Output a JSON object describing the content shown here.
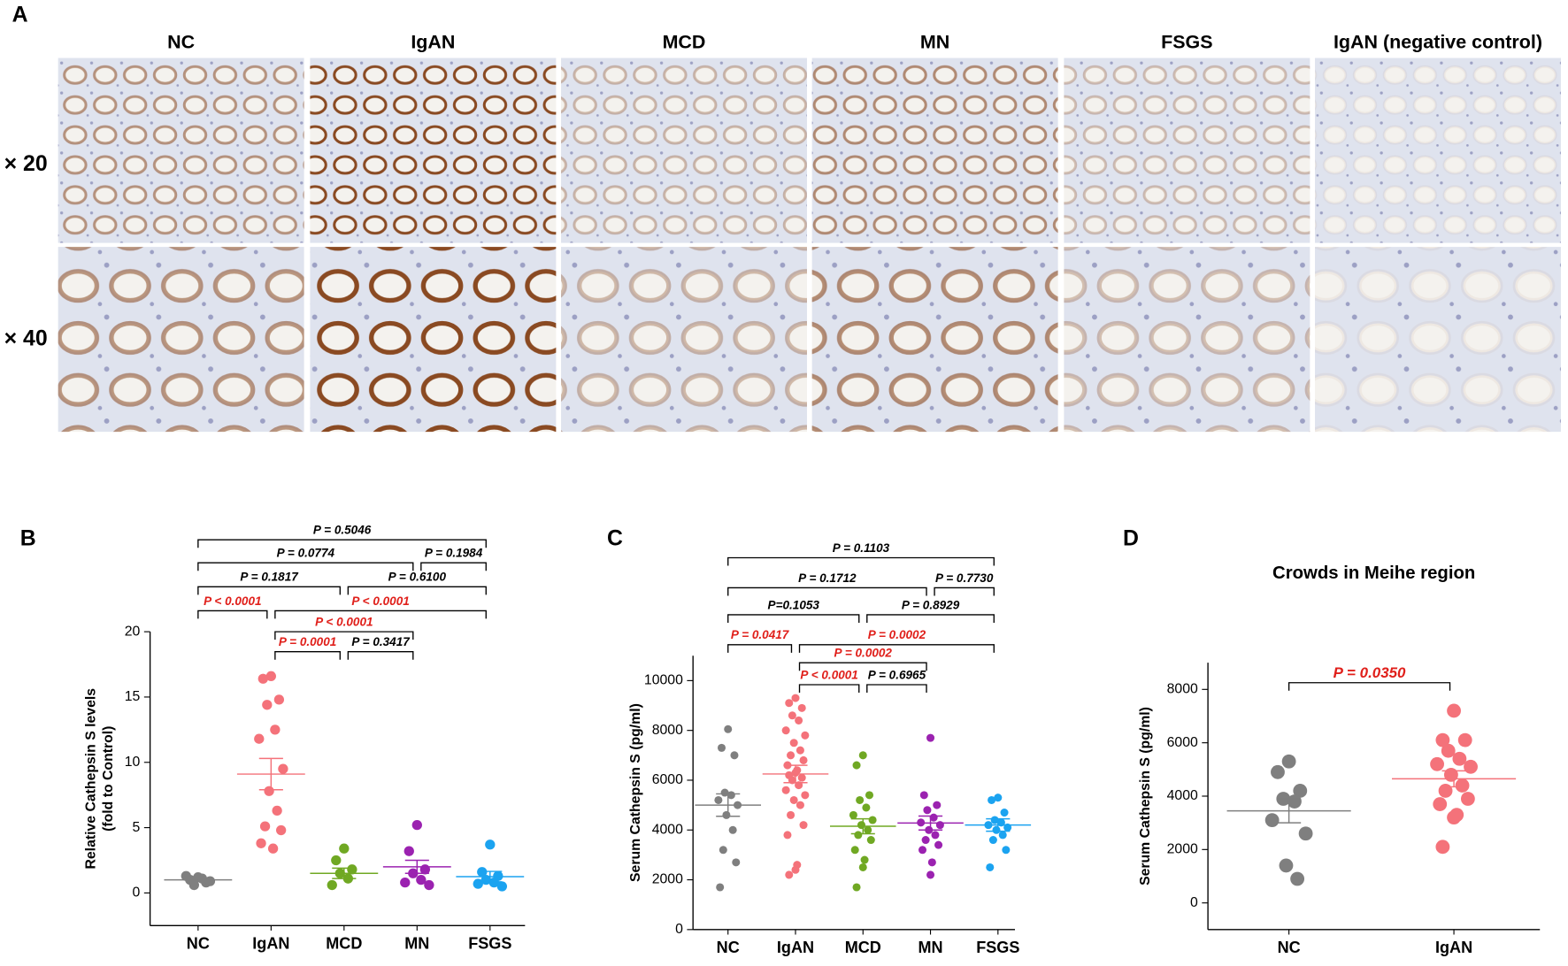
{
  "panel_a": {
    "label": "A",
    "columns": [
      "NC",
      "IgAN",
      "MCD",
      "MN",
      "FSGS",
      "IgAN (negative control)"
    ],
    "rows": [
      "× 20",
      "× 40"
    ]
  },
  "chart_data": [
    {
      "type": "dotplot",
      "panel": "B",
      "ylabel": [
        "Relative Cathepsin S levels",
        "(fold to Control)"
      ],
      "categories": [
        "NC",
        "IgAN",
        "MCD",
        "MN",
        "FSGS"
      ],
      "colors": [
        "#7f7f7f",
        "#f4727a",
        "#70a823",
        "#9b22b0",
        "#1ba3f0"
      ],
      "points": [
        [
          1.2,
          1.0,
          0.8,
          0.6,
          1.1,
          1.3,
          0.9
        ],
        [
          16.6,
          16.4,
          14.8,
          14.4,
          12.5,
          11.8,
          9.5,
          7.8,
          6.3,
          5.1,
          4.8,
          3.8,
          3.4
        ],
        [
          3.4,
          2.5,
          1.8,
          1.5,
          1.1,
          0.6
        ],
        [
          5.2,
          3.2,
          1.8,
          1.5,
          1.0,
          0.8,
          0.6
        ],
        [
          3.7,
          1.6,
          1.3,
          1.0,
          0.8,
          0.7,
          0.5
        ]
      ],
      "mean": [
        1.0,
        9.1,
        1.5,
        2.0,
        1.25
      ],
      "sem": [
        0.1,
        1.2,
        0.4,
        0.5,
        0.4
      ],
      "ylim": [
        -2.5,
        20
      ],
      "yticks": [
        0,
        5,
        10,
        15,
        20
      ],
      "comparisons": [
        {
          "between": [
            "NC",
            "FSGS"
          ],
          "label": "P = 0.5046",
          "color": "#000000"
        },
        {
          "between": [
            "NC",
            "MN"
          ],
          "label": "P = 0.0774",
          "color": "#000000"
        },
        {
          "between": [
            "MN",
            "FSGS"
          ],
          "label": "P = 0.1984",
          "color": "#000000"
        },
        {
          "between": [
            "NC",
            "MCD"
          ],
          "label": "P = 0.1817",
          "color": "#000000"
        },
        {
          "between": [
            "MCD",
            "FSGS"
          ],
          "label": "P = 0.6100",
          "color": "#000000"
        },
        {
          "between": [
            "NC",
            "IgAN"
          ],
          "label": "P < 0.0001",
          "color": "#e0201b"
        },
        {
          "between": [
            "IgAN",
            "FSGS"
          ],
          "label": "P < 0.0001",
          "color": "#e0201b"
        },
        {
          "between": [
            "IgAN",
            "MN"
          ],
          "label": "P < 0.0001",
          "color": "#e0201b"
        },
        {
          "between": [
            "IgAN",
            "MCD"
          ],
          "label": "P = 0.0001",
          "color": "#e0201b"
        },
        {
          "between": [
            "MCD",
            "MN"
          ],
          "label": "P = 0.3417",
          "color": "#000000"
        }
      ]
    },
    {
      "type": "dotplot",
      "panel": "C",
      "ylabel": [
        "Serum Cathepsin S (pg/ml)"
      ],
      "categories": [
        "NC",
        "IgAN",
        "MCD",
        "MN",
        "FSGS"
      ],
      "colors": [
        "#7f7f7f",
        "#f4727a",
        "#70a823",
        "#9b22b0",
        "#1ba3f0"
      ],
      "points": [
        [
          8050,
          7300,
          7000,
          5500,
          5400,
          5200,
          5000,
          4600,
          4000,
          3200,
          2700,
          1700
        ],
        [
          9300,
          9100,
          8900,
          8600,
          8400,
          8000,
          7800,
          7500,
          7200,
          7000,
          6800,
          6600,
          6400,
          6300,
          6200,
          6100,
          6000,
          5800,
          5600,
          5400,
          5200,
          5000,
          4600,
          4200,
          3800,
          2600,
          2400,
          2200
        ],
        [
          7000,
          6600,
          5400,
          5200,
          4900,
          4600,
          4400,
          4200,
          4000,
          3800,
          3600,
          3200,
          2800,
          2500,
          1700
        ],
        [
          7700,
          5400,
          5000,
          4800,
          4500,
          4300,
          4200,
          4000,
          3800,
          3600,
          3400,
          3200,
          2700,
          2200
        ],
        [
          5300,
          5200,
          4700,
          4400,
          4300,
          4200,
          4100,
          4000,
          3800,
          3600,
          3200,
          2500
        ]
      ],
      "mean": [
        5000,
        6250,
        4150,
        4280,
        4200
      ],
      "sem": [
        450,
        350,
        300,
        280,
        250
      ],
      "ylim": [
        0,
        11000
      ],
      "yticks": [
        0,
        2000,
        4000,
        6000,
        8000,
        10000
      ],
      "comparisons": [
        {
          "between": [
            "NC",
            "FSGS"
          ],
          "label": "P = 0.1103",
          "color": "#000000"
        },
        {
          "between": [
            "NC",
            "MN"
          ],
          "label": "P = 0.1712",
          "color": "#000000"
        },
        {
          "between": [
            "MN",
            "FSGS"
          ],
          "label": "P = 0.7730",
          "color": "#000000"
        },
        {
          "between": [
            "NC",
            "MCD"
          ],
          "label": "P=0.1053",
          "color": "#000000"
        },
        {
          "between": [
            "MCD",
            "FSGS"
          ],
          "label": "P = 0.8929",
          "color": "#000000"
        },
        {
          "between": [
            "NC",
            "IgAN"
          ],
          "label": "P = 0.0417",
          "color": "#e0201b"
        },
        {
          "between": [
            "IgAN",
            "FSGS"
          ],
          "label": "P = 0.0002",
          "color": "#e0201b"
        },
        {
          "between": [
            "IgAN",
            "MN"
          ],
          "label": "P = 0.0002",
          "color": "#e0201b"
        },
        {
          "between": [
            "IgAN",
            "MCD"
          ],
          "label": "P < 0.0001",
          "color": "#e0201b"
        },
        {
          "between": [
            "MCD",
            "MN"
          ],
          "label": "P = 0.6965",
          "color": "#000000"
        }
      ]
    },
    {
      "type": "dotplot",
      "panel": "D",
      "title": "Crowds in Meihe region",
      "ylabel": [
        "Serum Cathepsin S (pg/ml)"
      ],
      "categories": [
        "NC",
        "IgAN"
      ],
      "colors": [
        "#7f7f7f",
        "#f4727a"
      ],
      "points": [
        [
          5300,
          4900,
          4200,
          3900,
          3800,
          3100,
          2600,
          1400,
          900
        ],
        [
          7200,
          6100,
          6100,
          5700,
          5400,
          5200,
          5100,
          4800,
          4400,
          4200,
          3900,
          3700,
          3300,
          3200,
          2100
        ]
      ],
      "mean": [
        3450,
        4650
      ],
      "sem": [
        450,
        300
      ],
      "ylim": [
        -1000,
        9000
      ],
      "yticks": [
        0,
        2000,
        4000,
        6000,
        8000
      ],
      "comparisons": [
        {
          "between": [
            "NC",
            "IgAN"
          ],
          "label": "P = 0.0350",
          "color": "#e0201b"
        }
      ]
    }
  ]
}
